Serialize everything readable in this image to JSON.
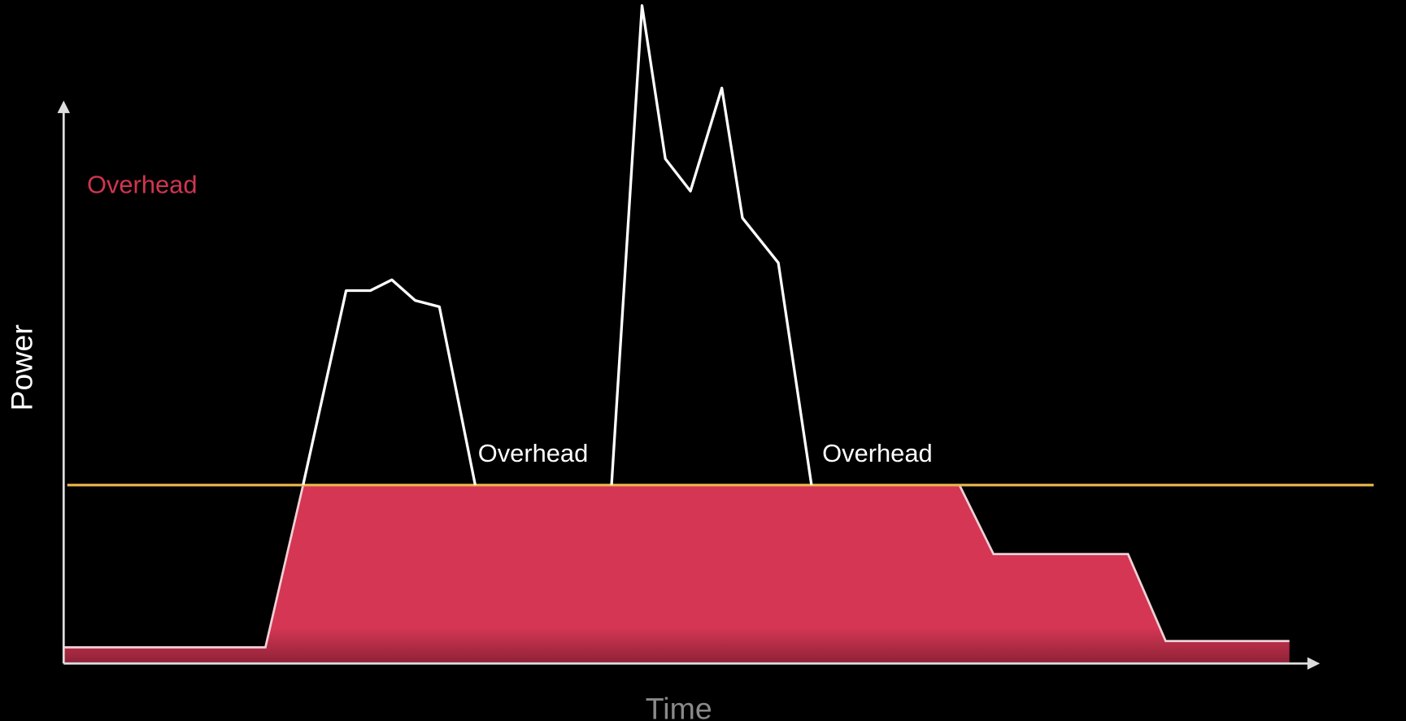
{
  "legend": {
    "label": "Overhead"
  },
  "axes": {
    "y_label": "Power",
    "x_label": "Time"
  },
  "annotations": [
    "Overhead",
    "Overhead"
  ]
}
